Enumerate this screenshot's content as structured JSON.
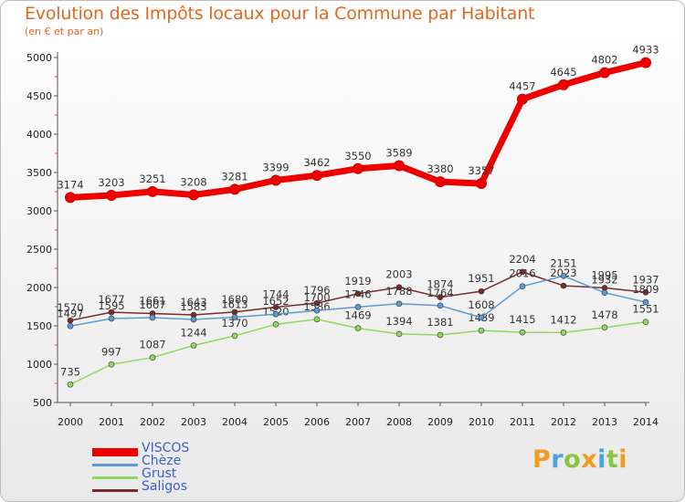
{
  "chart_data": {
    "type": "line",
    "title": "Evolution des Impôts locaux pour la Commune par Habitant",
    "subtitle": "(en € et par an)",
    "xlabel": "",
    "ylabel": "",
    "x": [
      "2000",
      "2001",
      "2002",
      "2003",
      "2004",
      "2005",
      "2006",
      "2007",
      "2008",
      "2009",
      "2010",
      "2011",
      "2012",
      "2013",
      "2014"
    ],
    "ylim": [
      500,
      5000
    ],
    "yticks": [
      500,
      1000,
      1500,
      2000,
      2500,
      3000,
      3500,
      4000,
      4500,
      5000
    ],
    "grid": false,
    "legend_position": "bottom-left",
    "series": [
      {
        "name": "Saligos",
        "color": "#7a2a2a",
        "values": [
          1570,
          1677,
          1661,
          1643,
          1680,
          1744,
          1796,
          1919,
          2003,
          1874,
          1951,
          2204,
          2023,
          1995,
          1937
        ]
      },
      {
        "name": "Grust",
        "color": "#90d860",
        "values": [
          735,
          997,
          1087,
          1244,
          1370,
          1520,
          1586,
          1469,
          1394,
          1381,
          1439,
          1415,
          1412,
          1478,
          1551
        ]
      },
      {
        "name": "Chèze",
        "color": "#5a9bd4",
        "values": [
          1497,
          1595,
          1607,
          1583,
          1613,
          1652,
          1700,
          1746,
          1788,
          1764,
          1608,
          2016,
          2151,
          1932,
          1809
        ]
      },
      {
        "name": "VISCOS",
        "color": "#ee0000",
        "values": [
          3174,
          3203,
          3251,
          3208,
          3281,
          3399,
          3462,
          3550,
          3589,
          3380,
          3357,
          4457,
          4645,
          4802,
          4933
        ]
      }
    ]
  },
  "legend": [
    {
      "label": "VISCOS",
      "color": "#ee0000",
      "thick": true
    },
    {
      "label": "Chèze",
      "color": "#5a9bd4",
      "thick": false
    },
    {
      "label": "Grust",
      "color": "#90d860",
      "thick": false
    },
    {
      "label": "Saligos",
      "color": "#7a2a2a",
      "thick": false
    }
  ],
  "brand": {
    "name": "Proxiti",
    "letters": [
      {
        "ch": "P",
        "color": "#f29b1f"
      },
      {
        "ch": "r",
        "color": "#4aa3df"
      },
      {
        "ch": "o",
        "color": "#8cc63f"
      },
      {
        "ch": "x",
        "color": "#f29b1f"
      },
      {
        "ch": "i",
        "color": "#4aa3df"
      },
      {
        "ch": "t",
        "color": "#8cc63f"
      },
      {
        "ch": "i",
        "color": "#f29b1f"
      }
    ]
  }
}
